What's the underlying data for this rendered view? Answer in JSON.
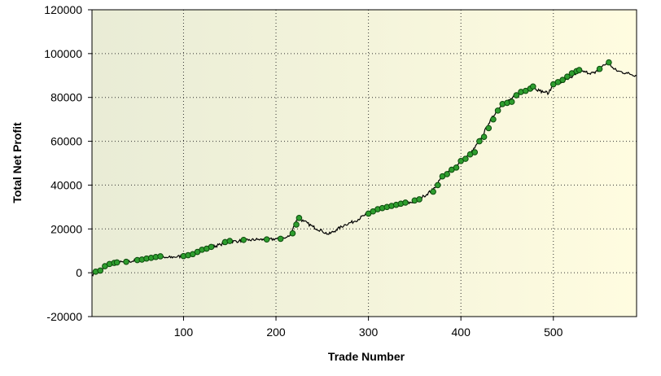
{
  "chart_data": {
    "type": "line",
    "title": "",
    "xlabel": "Trade Number",
    "ylabel": "Total Net Profit",
    "xlim": [
      1,
      590
    ],
    "ylim": [
      -20000,
      120000
    ],
    "x_ticks": [
      100,
      200,
      300,
      400,
      500
    ],
    "y_ticks": [
      -20000,
      0,
      20000,
      40000,
      60000,
      80000,
      100000,
      120000
    ],
    "grid": "dotted",
    "legend": "none",
    "colors": {
      "line": "#000000",
      "marker_fill": "#2e9e2e",
      "marker_stroke": "#0b4a0b",
      "background_left": "#e9ecd6",
      "background_right": "#fffce0",
      "grid": "#333333"
    },
    "series": [
      {
        "x": [
          1,
          5,
          10,
          15,
          20,
          25,
          30,
          40,
          50,
          60,
          70,
          80,
          90,
          100,
          110,
          120,
          130,
          140,
          145,
          150,
          160,
          170,
          180,
          190,
          200,
          210,
          215,
          220,
          224,
          230,
          240,
          250,
          257,
          265,
          275,
          285,
          295,
          300,
          310,
          320,
          330,
          340,
          350,
          360,
          370,
          380,
          390,
          400,
          410,
          420,
          430,
          440,
          450,
          460,
          470,
          478,
          485,
          490,
          495,
          500,
          510,
          520,
          527,
          535,
          545,
          552,
          560,
          565,
          570,
          580,
          590
        ],
        "values": [
          -1000,
          500,
          0,
          3000,
          4000,
          4500,
          4700,
          5000,
          5800,
          6400,
          7200,
          6800,
          7200,
          7600,
          8500,
          10500,
          11800,
          12800,
          14000,
          14200,
          14500,
          14800,
          15200,
          15000,
          15500,
          15800,
          17000,
          22000,
          25000,
          23500,
          21000,
          19000,
          17500,
          19500,
          22000,
          23500,
          26000,
          27500,
          29000,
          30000,
          31000,
          31500,
          32500,
          35000,
          38000,
          44000,
          47000,
          51000,
          54000,
          60000,
          68000,
          75000,
          78000,
          81000,
          83000,
          85000,
          83000,
          82500,
          82000,
          86000,
          87000,
          89000,
          92000,
          91500,
          91000,
          94000,
          96000,
          93000,
          92000,
          91000,
          90000
        ]
      }
    ],
    "marker_points": {
      "x": [
        5,
        10,
        15,
        20,
        25,
        28,
        38,
        50,
        55,
        60,
        65,
        70,
        75,
        100,
        105,
        110,
        115,
        120,
        125,
        130,
        145,
        150,
        165,
        190,
        205,
        218,
        222,
        225,
        300,
        305,
        310,
        315,
        320,
        325,
        330,
        335,
        340,
        350,
        355,
        370,
        375,
        380,
        385,
        390,
        395,
        400,
        405,
        410,
        415,
        420,
        425,
        430,
        435,
        440,
        445,
        450,
        455,
        460,
        465,
        470,
        475,
        478,
        500,
        505,
        510,
        515,
        520,
        525,
        528,
        550,
        560
      ],
      "y": [
        500,
        1000,
        3000,
        4000,
        4500,
        4700,
        5000,
        5800,
        6000,
        6500,
        6800,
        7200,
        7500,
        7600,
        8000,
        8500,
        9500,
        10500,
        11000,
        11800,
        14000,
        14500,
        15000,
        15200,
        15500,
        18000,
        22000,
        25000,
        27000,
        28000,
        29000,
        29500,
        30000,
        30500,
        31000,
        31500,
        32000,
        33000,
        33500,
        37000,
        40000,
        44000,
        45000,
        47000,
        48000,
        51000,
        52000,
        54000,
        55000,
        60000,
        62000,
        66000,
        70000,
        74000,
        77000,
        77500,
        78000,
        81000,
        82500,
        83000,
        84000,
        85000,
        86000,
        87000,
        88000,
        89500,
        91000,
        92000,
        92500,
        93000,
        96000
      ]
    }
  }
}
